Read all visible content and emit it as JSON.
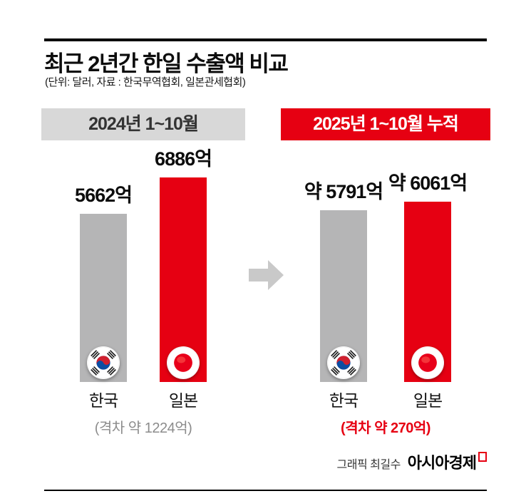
{
  "header": {
    "title": "최근 2년간 한일 수출액 비교",
    "subtitle": "(단위: 달러, 자료 : 한국무역협회, 일본관세협회)"
  },
  "colors": {
    "red": "#e60012",
    "bar_gray": "#b5b5b6",
    "panel_header_gray_bg": "#d8d8d8",
    "panel_header_gray_text": "#333333",
    "gap_text_gray": "#8c8c8c",
    "arrow_gray": "#c9c9c9"
  },
  "chart_data": [
    {
      "type": "bar",
      "title": "2024년 1~10월",
      "categories": [
        "한국",
        "일본"
      ],
      "values": [
        5662,
        6886
      ],
      "value_labels": [
        "5662억",
        "6886억"
      ],
      "bar_colors": [
        "gray",
        "red"
      ],
      "gap_label": "(격차 약 1224억)",
      "unit": "억 달러",
      "legend": "none",
      "grid": "off"
    },
    {
      "type": "bar",
      "title": "2025년 1~10월 누적",
      "categories": [
        "한국",
        "일본"
      ],
      "values": [
        5791,
        6061
      ],
      "value_labels": [
        "약 5791억",
        "약 6061억"
      ],
      "bar_colors": [
        "gray",
        "red"
      ],
      "gap_label": "(격차 약 270억)",
      "unit": "억 달러",
      "legend": "none",
      "grid": "off"
    }
  ],
  "credit": {
    "graphic_by": "그래픽 최길수",
    "brand": "아시아경제"
  }
}
